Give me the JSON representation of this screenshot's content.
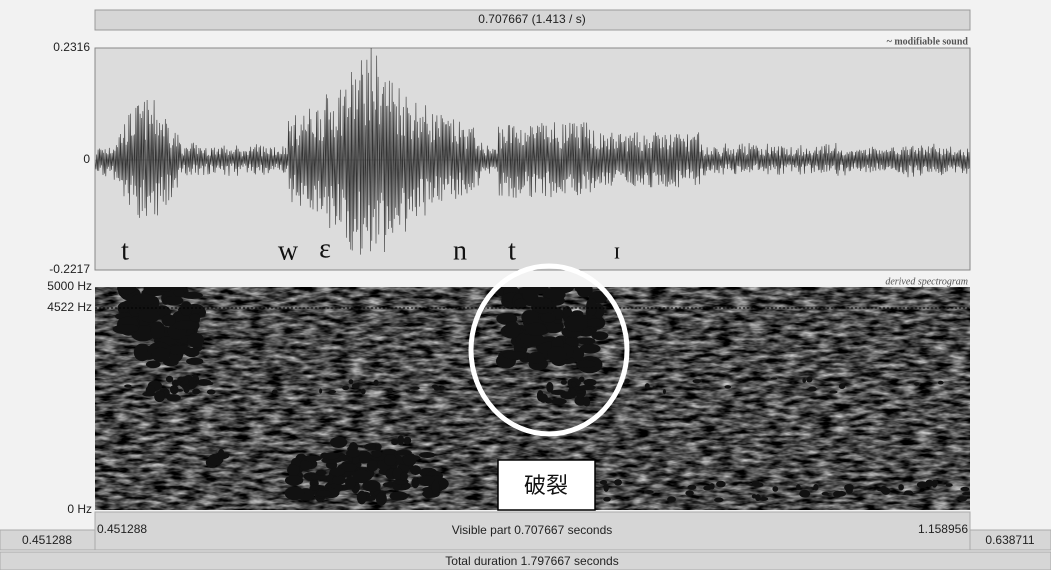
{
  "top_bar": "0.707667 (1.413 / s)",
  "waveform": {
    "label": "~ modifiable sound",
    "y_max": "0.2316",
    "y_zero": "0",
    "y_min": "-0.2217",
    "phonemes": [
      "t",
      "w",
      "ɛ",
      "n",
      "t",
      "ɪ"
    ]
  },
  "spectrogram": {
    "label": "derived spectrogram",
    "f_max": "5000 Hz",
    "f_cursor": "4522 Hz",
    "f_min": "0 Hz"
  },
  "annotation": "破裂",
  "footer": {
    "left_outside": "0.451288",
    "visible_start": "0.451288",
    "visible_part": "Visible part 0.707667 seconds",
    "visible_end": "1.158956",
    "right_outside": "0.638711",
    "total": "Total duration 1.797667 seconds"
  }
}
